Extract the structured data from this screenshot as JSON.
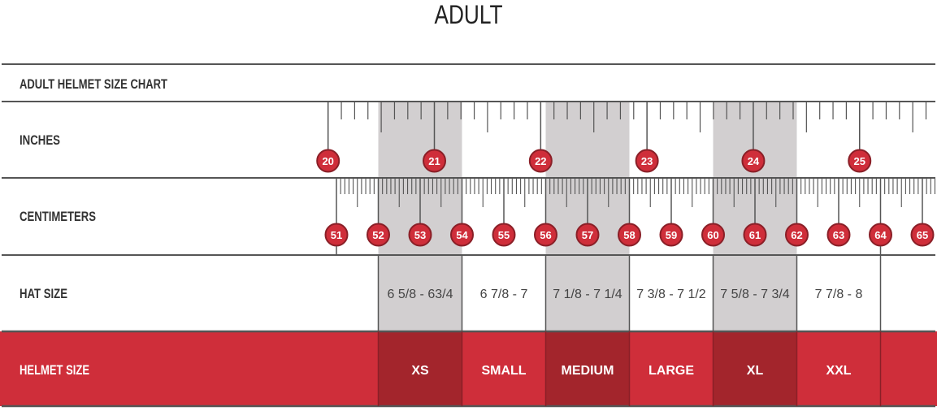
{
  "page_title": "ADULT",
  "chart_data": {
    "type": "table",
    "title": "ADULT HELMET SIZE CHART",
    "row_labels": {
      "inches": "INCHES",
      "centimeters": "CENTIMETERS",
      "hat_size": "HAT SIZE",
      "helmet_size": "HELMET SIZE"
    },
    "inch_markers": [
      20,
      21,
      22,
      23,
      24,
      25
    ],
    "cm_markers": [
      51,
      52,
      53,
      54,
      55,
      56,
      57,
      58,
      59,
      60,
      61,
      62,
      63,
      64,
      65
    ],
    "sizes": [
      {
        "helmet": "XS",
        "hat": "6 5/8 - 63/4",
        "cm_min": 52,
        "cm_max": 54,
        "shaded": true
      },
      {
        "helmet": "SMALL",
        "hat": "6 7/8 - 7",
        "cm_min": 54,
        "cm_max": 56,
        "shaded": false
      },
      {
        "helmet": "MEDIUM",
        "hat": "7 1/8 - 7 1/4",
        "cm_min": 56,
        "cm_max": 58,
        "shaded": true
      },
      {
        "helmet": "LARGE",
        "hat": "7 3/8 - 7 1/2",
        "cm_min": 58,
        "cm_max": 60,
        "shaded": false
      },
      {
        "helmet": "XL",
        "hat": "7 5/8 - 7 3/4",
        "cm_min": 60,
        "cm_max": 62,
        "shaded": true
      },
      {
        "helmet": "XXL",
        "hat": "7 7/8 - 8",
        "cm_min": 62,
        "cm_max": 64,
        "shaded": false
      }
    ],
    "colors": {
      "red": "#cf2e3a",
      "dark_red": "#a3252c",
      "shade": "#d2cfd0",
      "marker_border": "#8a1f27",
      "line": "#555555"
    }
  }
}
